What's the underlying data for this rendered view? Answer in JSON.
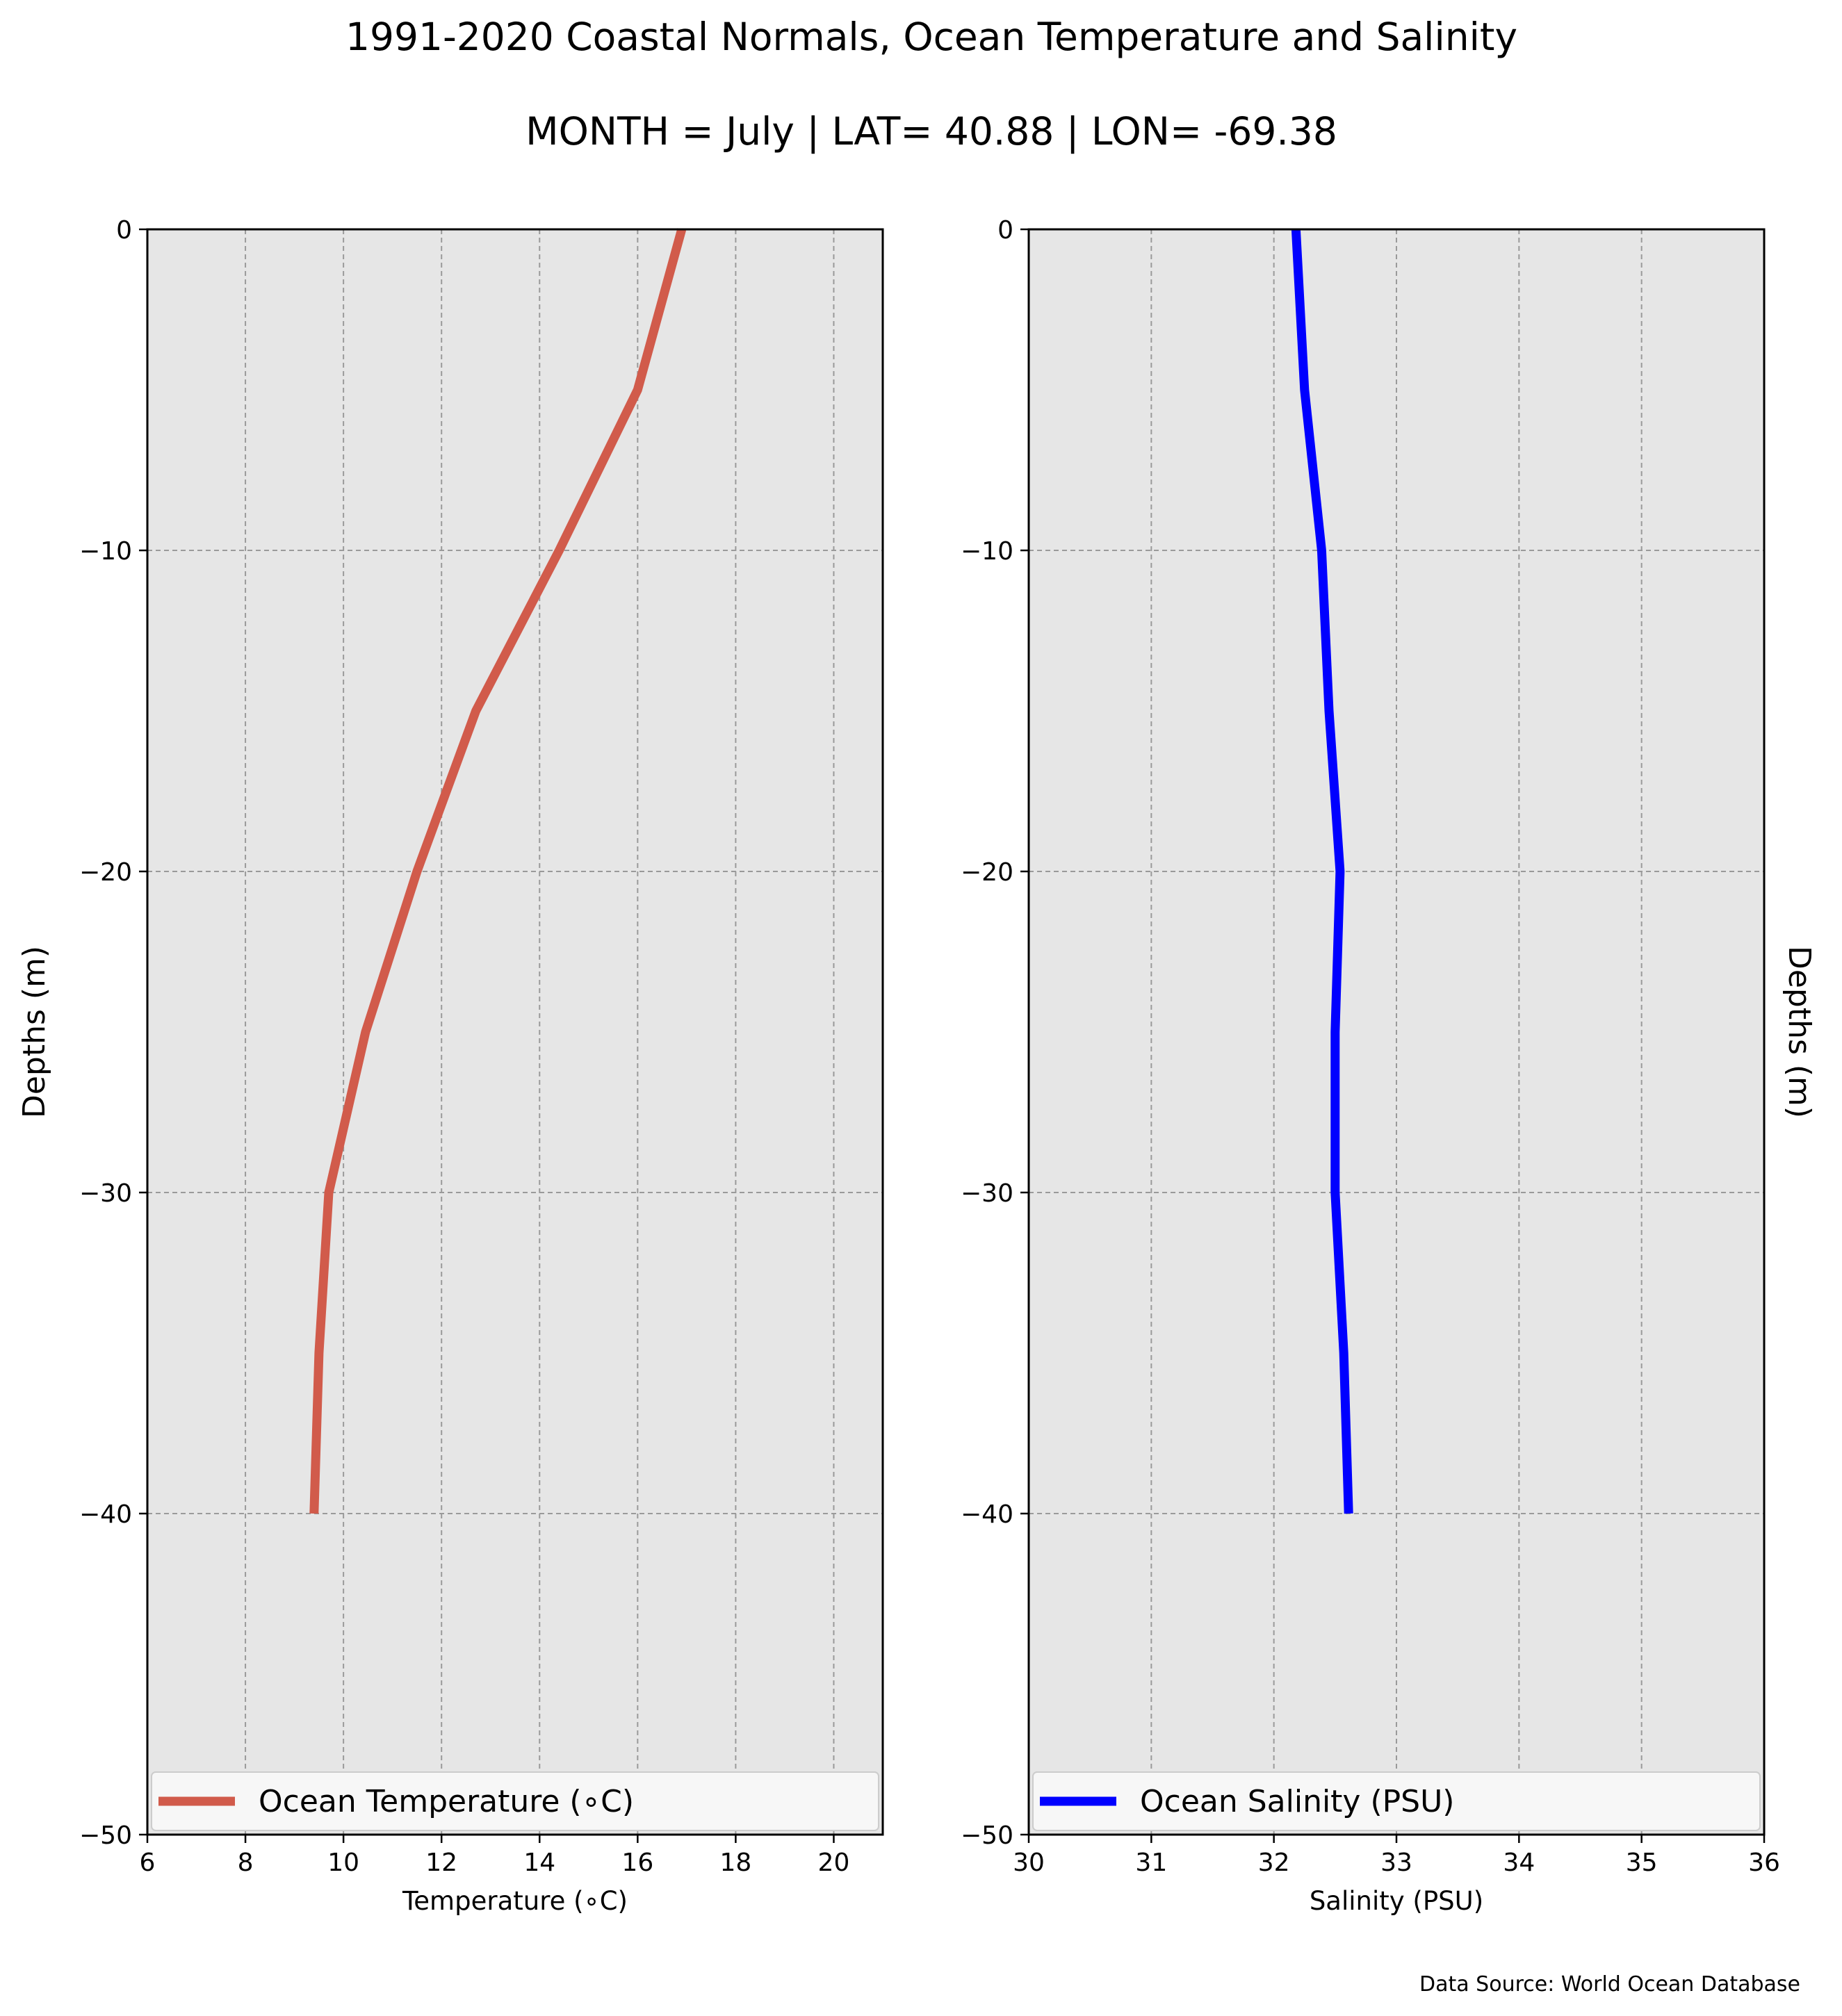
{
  "figure": {
    "title": "1991-2020 Coastal Normals, Ocean Temperature and Salinity",
    "subtitle": "MONTH = July | LAT= 40.88 | LON= -69.38",
    "source_note": "Data Source: World Ocean Database",
    "panel_background": "#e6e6e6"
  },
  "chart_data": [
    {
      "type": "line",
      "xlabel": "Temperature (∘C)",
      "ylabel": "Depths (m)",
      "xlim": [
        6,
        21
      ],
      "ylim": [
        -50,
        0
      ],
      "xticks": [
        6,
        8,
        10,
        12,
        14,
        16,
        18,
        20
      ],
      "yticks": [
        0,
        -10,
        -20,
        -30,
        -40,
        -50
      ],
      "ytick_labels": [
        "0",
        "−10",
        "−20",
        "−30",
        "−40",
        "−50"
      ],
      "grid": true,
      "legend_position": "bottom",
      "series": [
        {
          "name": "Ocean Temperature (∘C)",
          "color": "#d15b4b",
          "x": [
            16.9,
            16.0,
            14.4,
            12.7,
            11.5,
            10.45,
            9.7,
            9.5,
            9.4
          ],
          "y": [
            0,
            -5,
            -10,
            -15,
            -20,
            -25,
            -30,
            -35,
            -40
          ]
        }
      ]
    },
    {
      "type": "line",
      "xlabel": "Salinity (PSU)",
      "ylabel": "Depths (m)",
      "xlim": [
        30,
        36
      ],
      "ylim": [
        -50,
        0
      ],
      "xticks": [
        30,
        31,
        32,
        33,
        34,
        35,
        36
      ],
      "yticks": [
        0,
        -10,
        -20,
        -30,
        -40,
        -50
      ],
      "ytick_labels": [
        "0",
        "−10",
        "−20",
        "−30",
        "−40",
        "−50"
      ],
      "grid": true,
      "legend_position": "bottom",
      "series": [
        {
          "name": "Ocean Salinity (PSU)",
          "color": "#0000ff",
          "x": [
            32.18,
            32.25,
            32.39,
            32.45,
            32.54,
            32.5,
            32.5,
            32.57,
            32.61
          ],
          "y": [
            0,
            -5,
            -10,
            -15,
            -20,
            -25,
            -30,
            -35,
            -40
          ]
        }
      ]
    }
  ]
}
